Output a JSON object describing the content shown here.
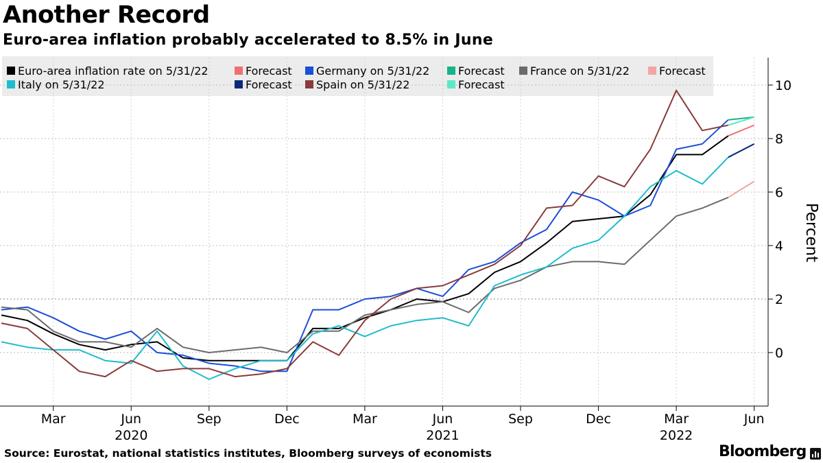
{
  "header": {
    "title": "Another Record",
    "subtitle": "Euro-area inflation probably accelerated to 8.5% in June"
  },
  "footer": {
    "source": "Source: Eurostat, national statistics institutes, Bloomberg surveys of economists",
    "brand": "Bloomberg"
  },
  "chart_data": {
    "type": "line",
    "ylabel": "Percent",
    "ylim": [
      -2,
      11
    ],
    "yticks": [
      0,
      2,
      4,
      6,
      8,
      10
    ],
    "x_start": "2020-01",
    "x_end": "2022-06",
    "x_ticks": [
      {
        "month": "2020-03",
        "label": "Mar",
        "year": ""
      },
      {
        "month": "2020-06",
        "label": "Jun",
        "year": "2020"
      },
      {
        "month": "2020-09",
        "label": "Sep",
        "year": ""
      },
      {
        "month": "2020-12",
        "label": "Dec",
        "year": ""
      },
      {
        "month": "2021-03",
        "label": "Mar",
        "year": ""
      },
      {
        "month": "2021-06",
        "label": "Jun",
        "year": "2021"
      },
      {
        "month": "2021-09",
        "label": "Sep",
        "year": ""
      },
      {
        "month": "2021-12",
        "label": "Dec",
        "year": ""
      },
      {
        "month": "2022-03",
        "label": "Mar",
        "year": "2022"
      },
      {
        "month": "2022-06",
        "label": "Jun",
        "year": ""
      }
    ],
    "grid": "dotted",
    "legend_placement": "top-left",
    "series": [
      {
        "name": "Euro-area inflation rate on 5/31/22",
        "color": "#000000",
        "start": "2020-01",
        "values": [
          1.4,
          1.2,
          0.7,
          0.3,
          0.1,
          0.3,
          0.4,
          -0.2,
          -0.3,
          -0.3,
          -0.3,
          -0.3,
          0.9,
          0.9,
          1.3,
          1.6,
          2.0,
          1.9,
          2.2,
          3.0,
          3.4,
          4.1,
          4.9,
          5.0,
          5.1,
          5.9,
          7.4,
          7.4,
          8.1
        ]
      },
      {
        "name": "Forecast",
        "color": "#f07070",
        "start": "2022-05",
        "values": [
          8.1,
          8.5
        ]
      },
      {
        "name": "Germany on 5/31/22",
        "color": "#1a4fd6",
        "start": "2020-01",
        "values": [
          1.6,
          1.7,
          1.3,
          0.8,
          0.5,
          0.8,
          0.0,
          -0.1,
          -0.4,
          -0.5,
          -0.7,
          -0.7,
          1.6,
          1.6,
          2.0,
          2.1,
          2.4,
          2.1,
          3.1,
          3.4,
          4.1,
          4.6,
          6.0,
          5.7,
          5.1,
          5.5,
          7.6,
          7.8,
          8.7
        ]
      },
      {
        "name": "Forecast",
        "color": "#18b38a",
        "start": "2022-05",
        "values": [
          8.7,
          8.8
        ]
      },
      {
        "name": "France on 5/31/22",
        "color": "#6b6b6b",
        "start": "2020-01",
        "values": [
          1.7,
          1.6,
          0.8,
          0.4,
          0.4,
          0.2,
          0.9,
          0.2,
          0.0,
          0.1,
          0.2,
          0.0,
          0.8,
          0.8,
          1.4,
          1.6,
          1.8,
          1.9,
          1.5,
          2.4,
          2.7,
          3.2,
          3.4,
          3.4,
          3.3,
          4.2,
          5.1,
          5.4,
          5.8
        ]
      },
      {
        "name": "Forecast",
        "color": "#f4a4a4",
        "start": "2022-05",
        "values": [
          5.8,
          6.4
        ]
      },
      {
        "name": "Italy on 5/31/22",
        "color": "#1fbccc",
        "start": "2020-01",
        "values": [
          0.4,
          0.2,
          0.1,
          0.1,
          -0.3,
          -0.4,
          0.8,
          -0.5,
          -1.0,
          -0.6,
          -0.3,
          -0.3,
          0.7,
          1.0,
          0.6,
          1.0,
          1.2,
          1.3,
          1.0,
          2.5,
          2.9,
          3.2,
          3.9,
          4.2,
          5.1,
          6.2,
          6.8,
          6.3,
          7.3
        ]
      },
      {
        "name": "Forecast",
        "color": "#0a2a78",
        "start": "2022-05",
        "values": [
          7.3,
          7.8
        ]
      },
      {
        "name": "Spain on 5/31/22",
        "color": "#8a3a3a",
        "start": "2020-01",
        "values": [
          1.1,
          0.9,
          0.1,
          -0.7,
          -0.9,
          -0.3,
          -0.7,
          -0.6,
          -0.6,
          -0.9,
          -0.8,
          -0.6,
          0.4,
          -0.1,
          1.2,
          2.0,
          2.4,
          2.5,
          2.9,
          3.3,
          4.0,
          5.4,
          5.5,
          6.6,
          6.2,
          7.6,
          9.8,
          8.3,
          8.5
        ]
      },
      {
        "name": "Forecast",
        "color": "#5ee8c8",
        "start": "2022-05",
        "values": [
          8.5,
          8.8
        ]
      }
    ]
  }
}
